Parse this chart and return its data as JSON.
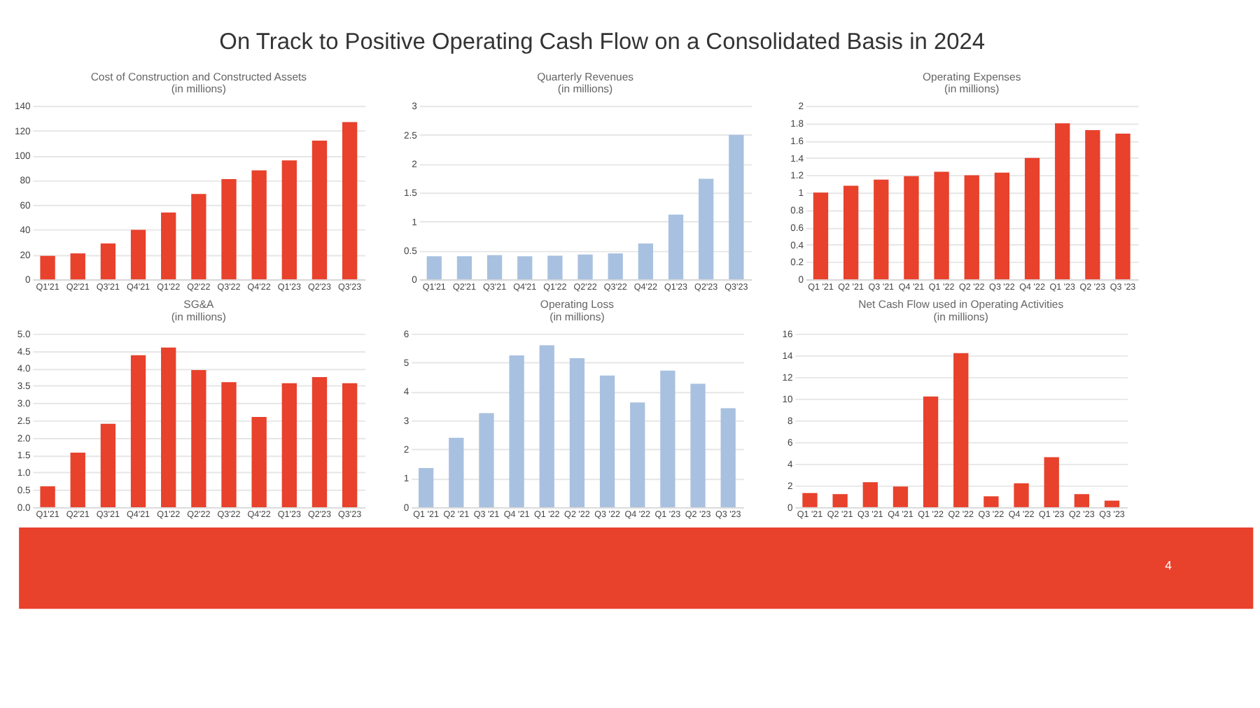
{
  "chart_data": [
    {
      "type": "other",
      "title": "On Track to Positive Operating Cash Flow on a Consolidated Basis in 2024"
    },
    {
      "type": "bar",
      "title": "Cost of Construction and Constructed Assets",
      "subtitle": "(in millions)",
      "categories": [
        "Q1'21",
        "Q2'21",
        "Q3'21",
        "Q4'21",
        "Q1'22",
        "Q2'22",
        "Q3'22",
        "Q4'22",
        "Q1'23",
        "Q2'23",
        "Q3'23"
      ],
      "values": [
        19,
        21,
        29,
        40,
        54,
        69,
        81,
        88,
        96,
        112,
        127
      ],
      "color": "#e8412c",
      "ylim": [
        0,
        140
      ],
      "yticks": [
        0,
        20,
        40,
        60,
        80,
        100,
        120,
        140
      ],
      "grid": "y"
    },
    {
      "type": "bar",
      "title": "Quarterly Revenues",
      "subtitle": "(in millions)",
      "categories": [
        "Q1'21",
        "Q2'21",
        "Q3'21",
        "Q4'21",
        "Q1'22",
        "Q2'22",
        "Q3'22",
        "Q4'22",
        "Q1'23",
        "Q2'23",
        "Q3'23"
      ],
      "values": [
        0.4,
        0.4,
        0.42,
        0.4,
        0.41,
        0.43,
        0.45,
        0.62,
        1.12,
        1.74,
        2.5
      ],
      "color": "#a9c1e0",
      "ylim": [
        0,
        3
      ],
      "yticks": [
        0,
        0.5,
        1,
        1.5,
        2,
        2.5,
        3
      ],
      "grid": "y"
    },
    {
      "type": "bar",
      "title": "Operating Expenses",
      "subtitle": "(in millions)",
      "categories": [
        "Q1 '21",
        "Q2 '21",
        "Q3 '21",
        "Q4 '21",
        "Q1 '22",
        "Q2 '22",
        "Q3 '22",
        "Q4 '22",
        "Q1 '23",
        "Q2 '23",
        "Q3 '23"
      ],
      "values": [
        1.0,
        1.08,
        1.15,
        1.19,
        1.24,
        1.2,
        1.23,
        1.4,
        1.8,
        1.72,
        1.68
      ],
      "color": "#e8412c",
      "ylim": [
        0,
        2
      ],
      "yticks": [
        0,
        0.2,
        0.4,
        0.6,
        0.8,
        1,
        1.2,
        1.4,
        1.6,
        1.8,
        2
      ],
      "grid": "y"
    },
    {
      "type": "bar",
      "title": "SG&A",
      "subtitle": "(in millions)",
      "categories": [
        "Q1'21",
        "Q2'21",
        "Q3'21",
        "Q4'21",
        "Q1'22",
        "Q2'22",
        "Q3'22",
        "Q4'22",
        "Q1'23",
        "Q2'23",
        "Q3'23"
      ],
      "values": [
        0.6,
        1.57,
        2.4,
        4.38,
        4.6,
        3.95,
        3.6,
        2.6,
        3.57,
        3.75,
        3.57
      ],
      "color": "#e8412c",
      "ylim": [
        0,
        5
      ],
      "yticks": [
        {
          "value": 0,
          "label": "0.0"
        },
        {
          "value": 0.5,
          "label": "0.5"
        },
        {
          "value": 1,
          "label": "1.0"
        },
        {
          "value": 1.5,
          "label": "1.5"
        },
        {
          "value": 2,
          "label": "2.0"
        },
        {
          "value": 2.5,
          "label": "2.5"
        },
        {
          "value": 3,
          "label": "3.0"
        },
        {
          "value": 3.5,
          "label": "3.5"
        },
        {
          "value": 4,
          "label": "4.0"
        },
        {
          "value": 4.5,
          "label": "4.5"
        },
        {
          "value": 5,
          "label": "5.0"
        }
      ],
      "grid": "y"
    },
    {
      "type": "bar",
      "title": "Operating Loss",
      "subtitle": "(in millions)",
      "categories": [
        "Q1 '21",
        "Q2 '21",
        "Q3 '21",
        "Q4 '21",
        "Q1 '22",
        "Q2 '22",
        "Q3 '22",
        "Q4 '22",
        "Q1 '23",
        "Q2 '23",
        "Q3 '23"
      ],
      "values": [
        1.35,
        2.4,
        3.25,
        5.25,
        5.6,
        5.15,
        4.55,
        3.62,
        4.72,
        4.27,
        3.42
      ],
      "color": "#a9c1e0",
      "ylim": [
        0,
        6
      ],
      "yticks": [
        0,
        1,
        2,
        3,
        4,
        5,
        6
      ],
      "grid": "y"
    },
    {
      "type": "bar",
      "title": "Net Cash Flow used in Operating Activities",
      "subtitle": "(in millions)",
      "categories": [
        "Q1 '21",
        "Q2 '21",
        "Q3 '21",
        "Q4 '21",
        "Q1 '22",
        "Q2 '22",
        "Q3 '22",
        "Q4 '22",
        "Q1 '23",
        "Q2 '23",
        "Q3 '23"
      ],
      "values": [
        1.3,
        1.2,
        2.3,
        1.9,
        10.2,
        14.2,
        1.0,
        2.2,
        4.6,
        1.2,
        0.6
      ],
      "color": "#e8412c",
      "ylim": [
        0,
        16
      ],
      "yticks": [
        0,
        2,
        4,
        6,
        8,
        10,
        12,
        14,
        16
      ],
      "grid": "y"
    },
    {
      "type": "other",
      "annotations": [
        "4"
      ]
    }
  ]
}
